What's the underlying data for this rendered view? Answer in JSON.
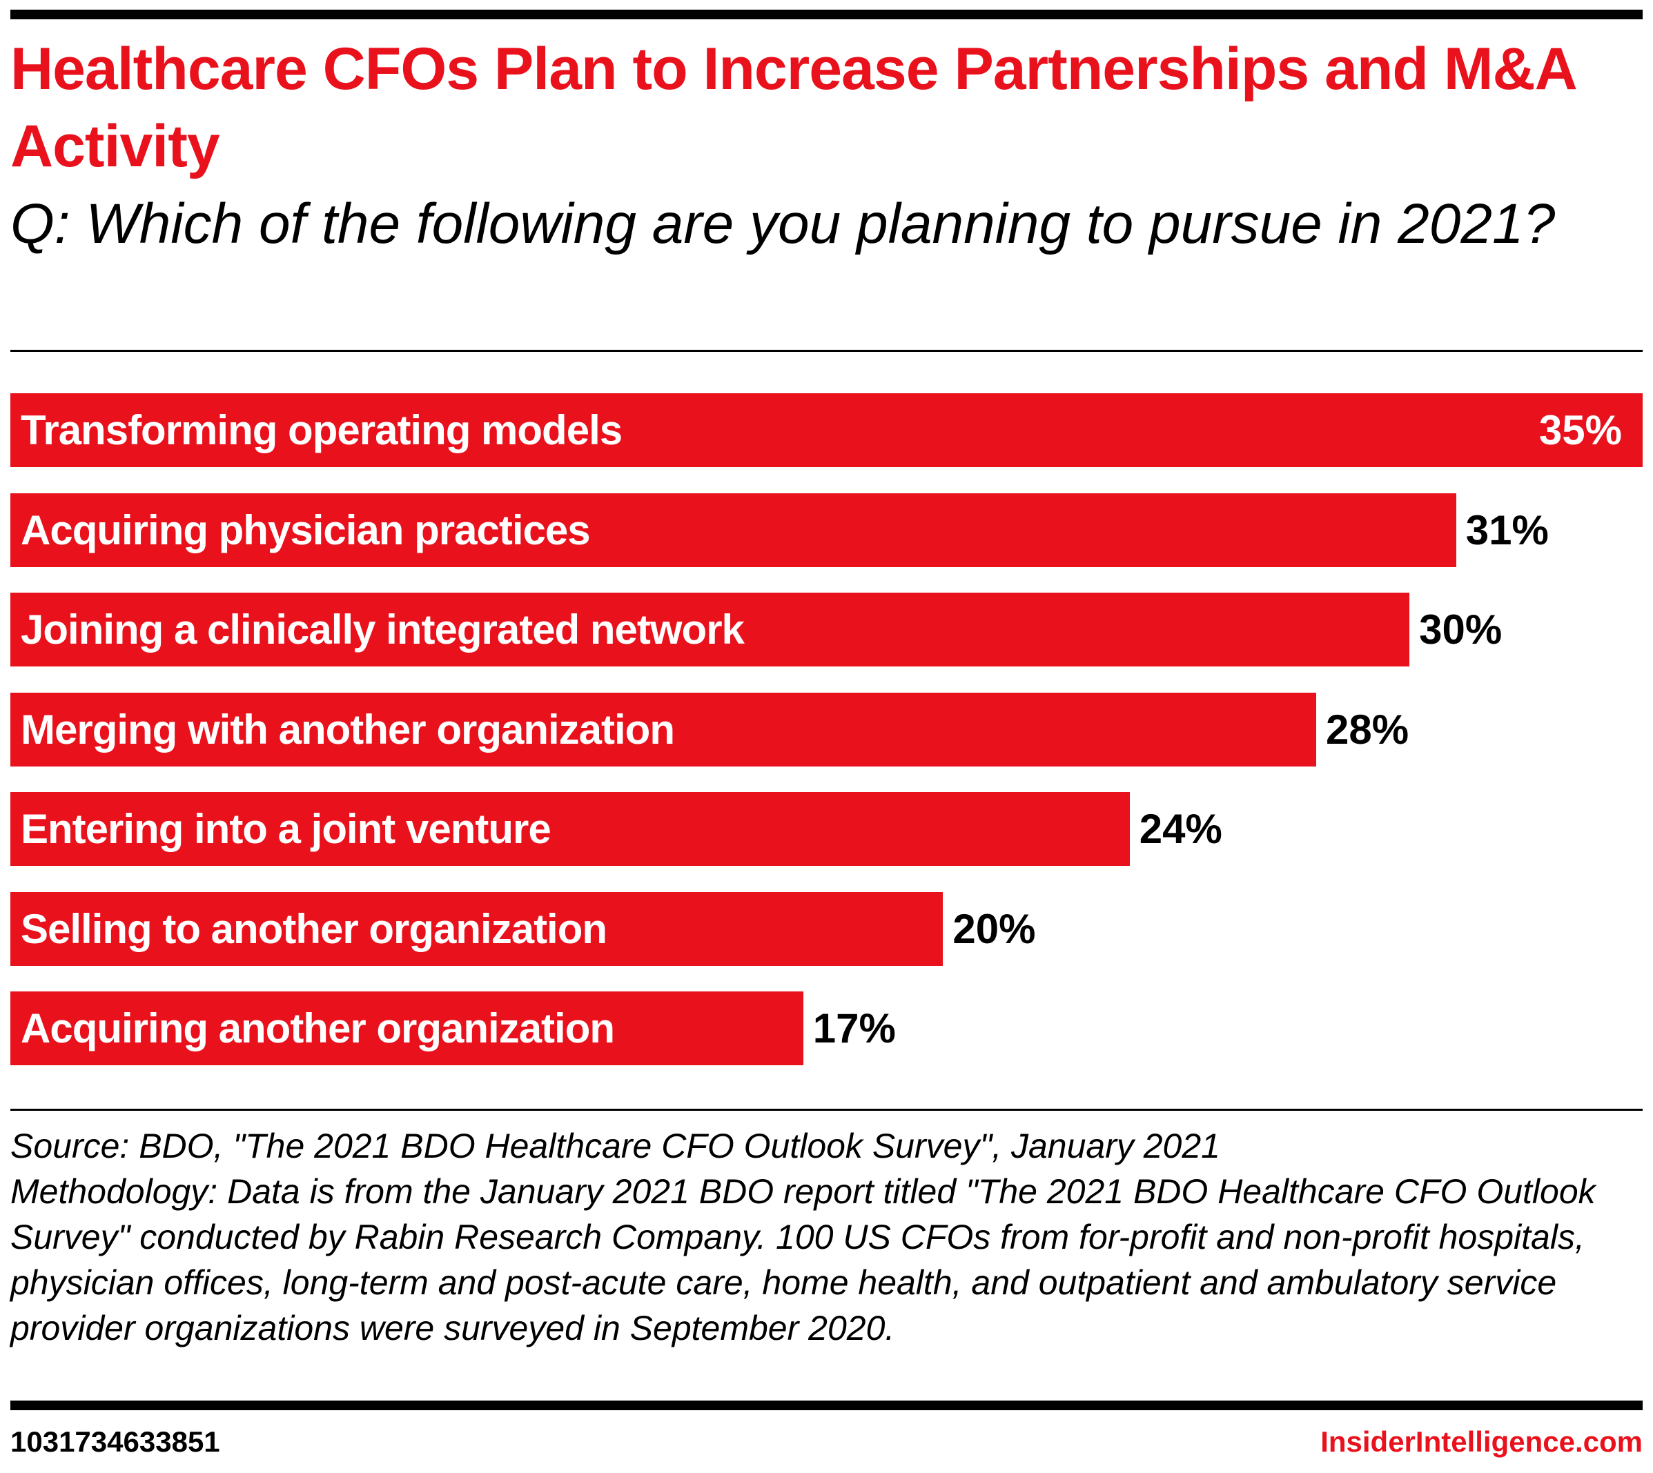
{
  "colors": {
    "accent": "#e8111c",
    "text": "#000000"
  },
  "chart_data": {
    "type": "bar",
    "orientation": "horizontal",
    "title": "Healthcare CFOs Plan to Increase Partnerships and M&A Activity",
    "subtitle": "Q: Which of the following are you planning to pursue in 2021?",
    "categories": [
      "Transforming operating models",
      "Acquiring physician practices",
      "Joining a clinically integrated network",
      "Merging with another organization",
      "Entering into a joint venture",
      "Selling to another organization",
      "Acquiring another organization"
    ],
    "values": [
      35,
      31,
      30,
      28,
      24,
      20,
      17
    ],
    "value_labels": [
      "35%",
      "31%",
      "30%",
      "28%",
      "24%",
      "20%",
      "17%"
    ],
    "xlim": [
      0,
      35
    ],
    "grid": false
  },
  "notes": {
    "source": "Source: BDO, \"The 2021 BDO Healthcare CFO Outlook Survey\", January 2021",
    "methodology": "Methodology: Data is from the January 2021 BDO report titled \"The 2021 BDO Healthcare CFO Outlook Survey\" conducted by Rabin Research Company. 100 US CFOs from for-profit and non-profit hospitals, physician offices, long-term and post-acute care, home health, and outpatient and ambulatory service provider organizations were surveyed in September 2020."
  },
  "footer": {
    "id": "1031734633851",
    "brand": "InsiderIntelligence.com"
  }
}
